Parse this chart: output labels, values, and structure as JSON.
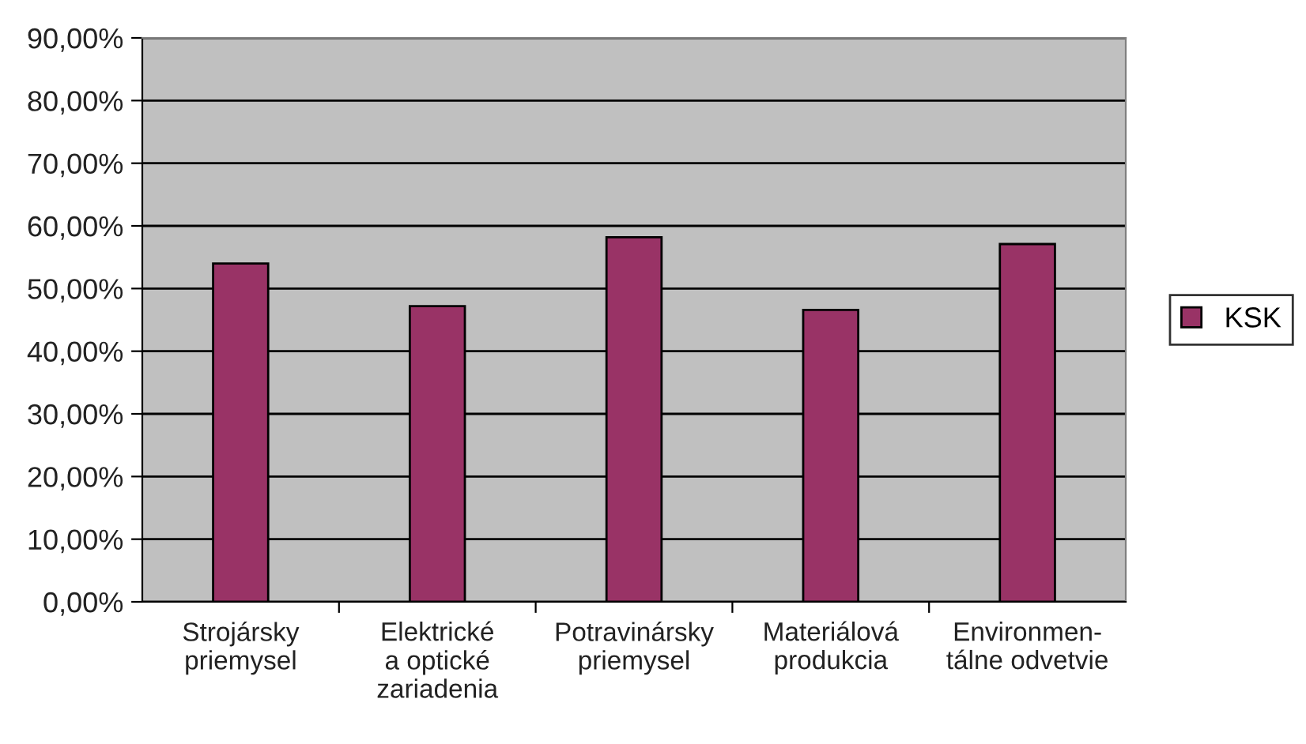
{
  "chart_data": {
    "type": "bar",
    "categories": [
      "Strojársky\npriemysel",
      "Elektrické\na optické\nzariadenia",
      "Potravinársky\npriemysel",
      "Materiálová\nprodukcia",
      "Environmen-\ntálne odvetvie"
    ],
    "series": [
      {
        "name": "KSK",
        "color": "#993366",
        "values": [
          54.0,
          47.2,
          58.2,
          46.6,
          57.1
        ]
      }
    ],
    "ylim": [
      0,
      90
    ],
    "yticks": [
      {
        "value": 0,
        "label": "0,00%"
      },
      {
        "value": 10,
        "label": "10,00%"
      },
      {
        "value": 20,
        "label": "20,00%"
      },
      {
        "value": 30,
        "label": "30,00%"
      },
      {
        "value": 40,
        "label": "40,00%"
      },
      {
        "value": 50,
        "label": "50,00%"
      },
      {
        "value": 60,
        "label": "60,00%"
      },
      {
        "value": 70,
        "label": "70,00%"
      },
      {
        "value": 80,
        "label": "80,00%"
      },
      {
        "value": 90,
        "label": "90,00%"
      }
    ],
    "grid": "y",
    "legend": "right"
  }
}
